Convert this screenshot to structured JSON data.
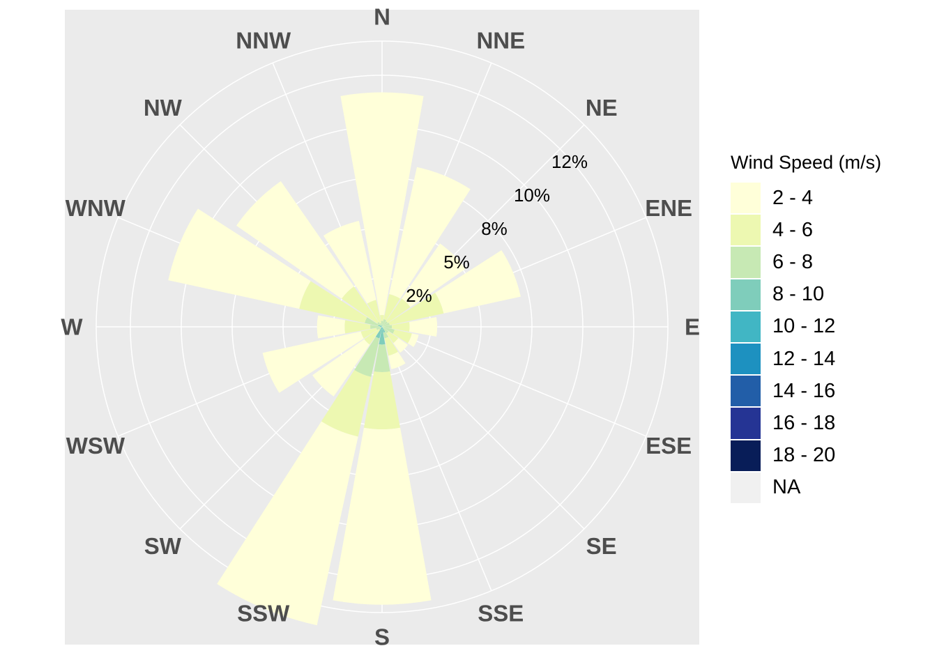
{
  "chart_data": {
    "type": "wind-rose",
    "title": "",
    "legend": {
      "title": "Wind Speed (m/s)",
      "placement": "right",
      "bins": [
        {
          "label": "2 - 4",
          "color": "#ffffd9"
        },
        {
          "label": "4 - 6",
          "color": "#edf8b1"
        },
        {
          "label": "6 - 8",
          "color": "#c7e9b4"
        },
        {
          "label": "8 - 10",
          "color": "#7fcdbb"
        },
        {
          "label": "10 - 12",
          "color": "#41b6c4"
        },
        {
          "label": "12 - 14",
          "color": "#1d91c0"
        },
        {
          "label": "14 - 16",
          "color": "#225ea8"
        },
        {
          "label": "16 - 18",
          "color": "#253494"
        },
        {
          "label": "18 - 20",
          "color": "#081d58"
        },
        {
          "label": "NA",
          "color": "#f0f0f0"
        }
      ]
    },
    "directions": [
      "N",
      "NNE",
      "NE",
      "ENE",
      "E",
      "ESE",
      "SE",
      "SSE",
      "S",
      "SSW",
      "SW",
      "WSW",
      "W",
      "WNW",
      "NW",
      "NNW"
    ],
    "ring_labels": [
      "2%",
      "5%",
      "8%",
      "10%",
      "12%"
    ],
    "radial_max_percent": 14.5,
    "grid": true,
    "panel_background": "#ebebeb",
    "series_note_units": "percent of observations, stacked from calm outward",
    "series": [
      {
        "name": "2 - 4",
        "values": [
          11.3,
          6.6,
          3.4,
          4.0,
          1.4,
          0.35,
          0.6,
          0.7,
          8.9,
          9.8,
          3.2,
          5.1,
          1.4,
          6.8,
          6.5,
          4.1
        ]
      },
      {
        "name": "4 - 6",
        "values": [
          0.3,
          1.3,
          1.4,
          2.8,
          0.9,
          0.9,
          0.6,
          0.9,
          2.9,
          3.1,
          0.9,
          0.8,
          1.3,
          3.4,
          2.2,
          1.2
        ]
      },
      {
        "name": "6 - 8",
        "values": [
          0.2,
          0.4,
          0.35,
          0.4,
          0.5,
          0.65,
          0.4,
          0.3,
          1.4,
          2.0,
          0.2,
          0.3,
          0.5,
          0.7,
          0.2,
          0.2
        ]
      },
      {
        "name": "8 - 10",
        "values": [
          0.1,
          0.0,
          0.0,
          0.0,
          0.0,
          0.0,
          0.0,
          0.3,
          0.8,
          0.5,
          0.0,
          0.0,
          0.1,
          0.1,
          0.1,
          0.0
        ]
      },
      {
        "name": "10 - 12",
        "values": [
          0.0,
          0.0,
          0.0,
          0.0,
          0.0,
          0.0,
          0.0,
          0.0,
          0.1,
          0.1,
          0.0,
          0.0,
          0.0,
          0.1,
          0.0,
          0.0
        ]
      },
      {
        "name": "12 - 14",
        "values": [
          0.0,
          0.0,
          0.0,
          0.0,
          0.0,
          0.0,
          0.0,
          0.0,
          0.0,
          0.0,
          0.0,
          0.0,
          0.0,
          0.0,
          0.0,
          0.0
        ]
      },
      {
        "name": "14 - 16",
        "values": [
          0.0,
          0.0,
          0.0,
          0.0,
          0.0,
          0.0,
          0.0,
          0.0,
          0.0,
          0.0,
          0.0,
          0.0,
          0.0,
          0.0,
          0.0,
          0.0
        ]
      },
      {
        "name": "16 - 18",
        "values": [
          0.0,
          0.0,
          0.0,
          0.0,
          0.0,
          0.0,
          0.0,
          0.0,
          0.0,
          0.0,
          0.0,
          0.0,
          0.0,
          0.0,
          0.0,
          0.0
        ]
      },
      {
        "name": "18 - 20",
        "values": [
          0.0,
          0.0,
          0.0,
          0.0,
          0.0,
          0.0,
          0.0,
          0.0,
          0.0,
          0.0,
          0.0,
          0.0,
          0.0,
          0.0,
          0.0,
          0.0
        ]
      }
    ]
  }
}
